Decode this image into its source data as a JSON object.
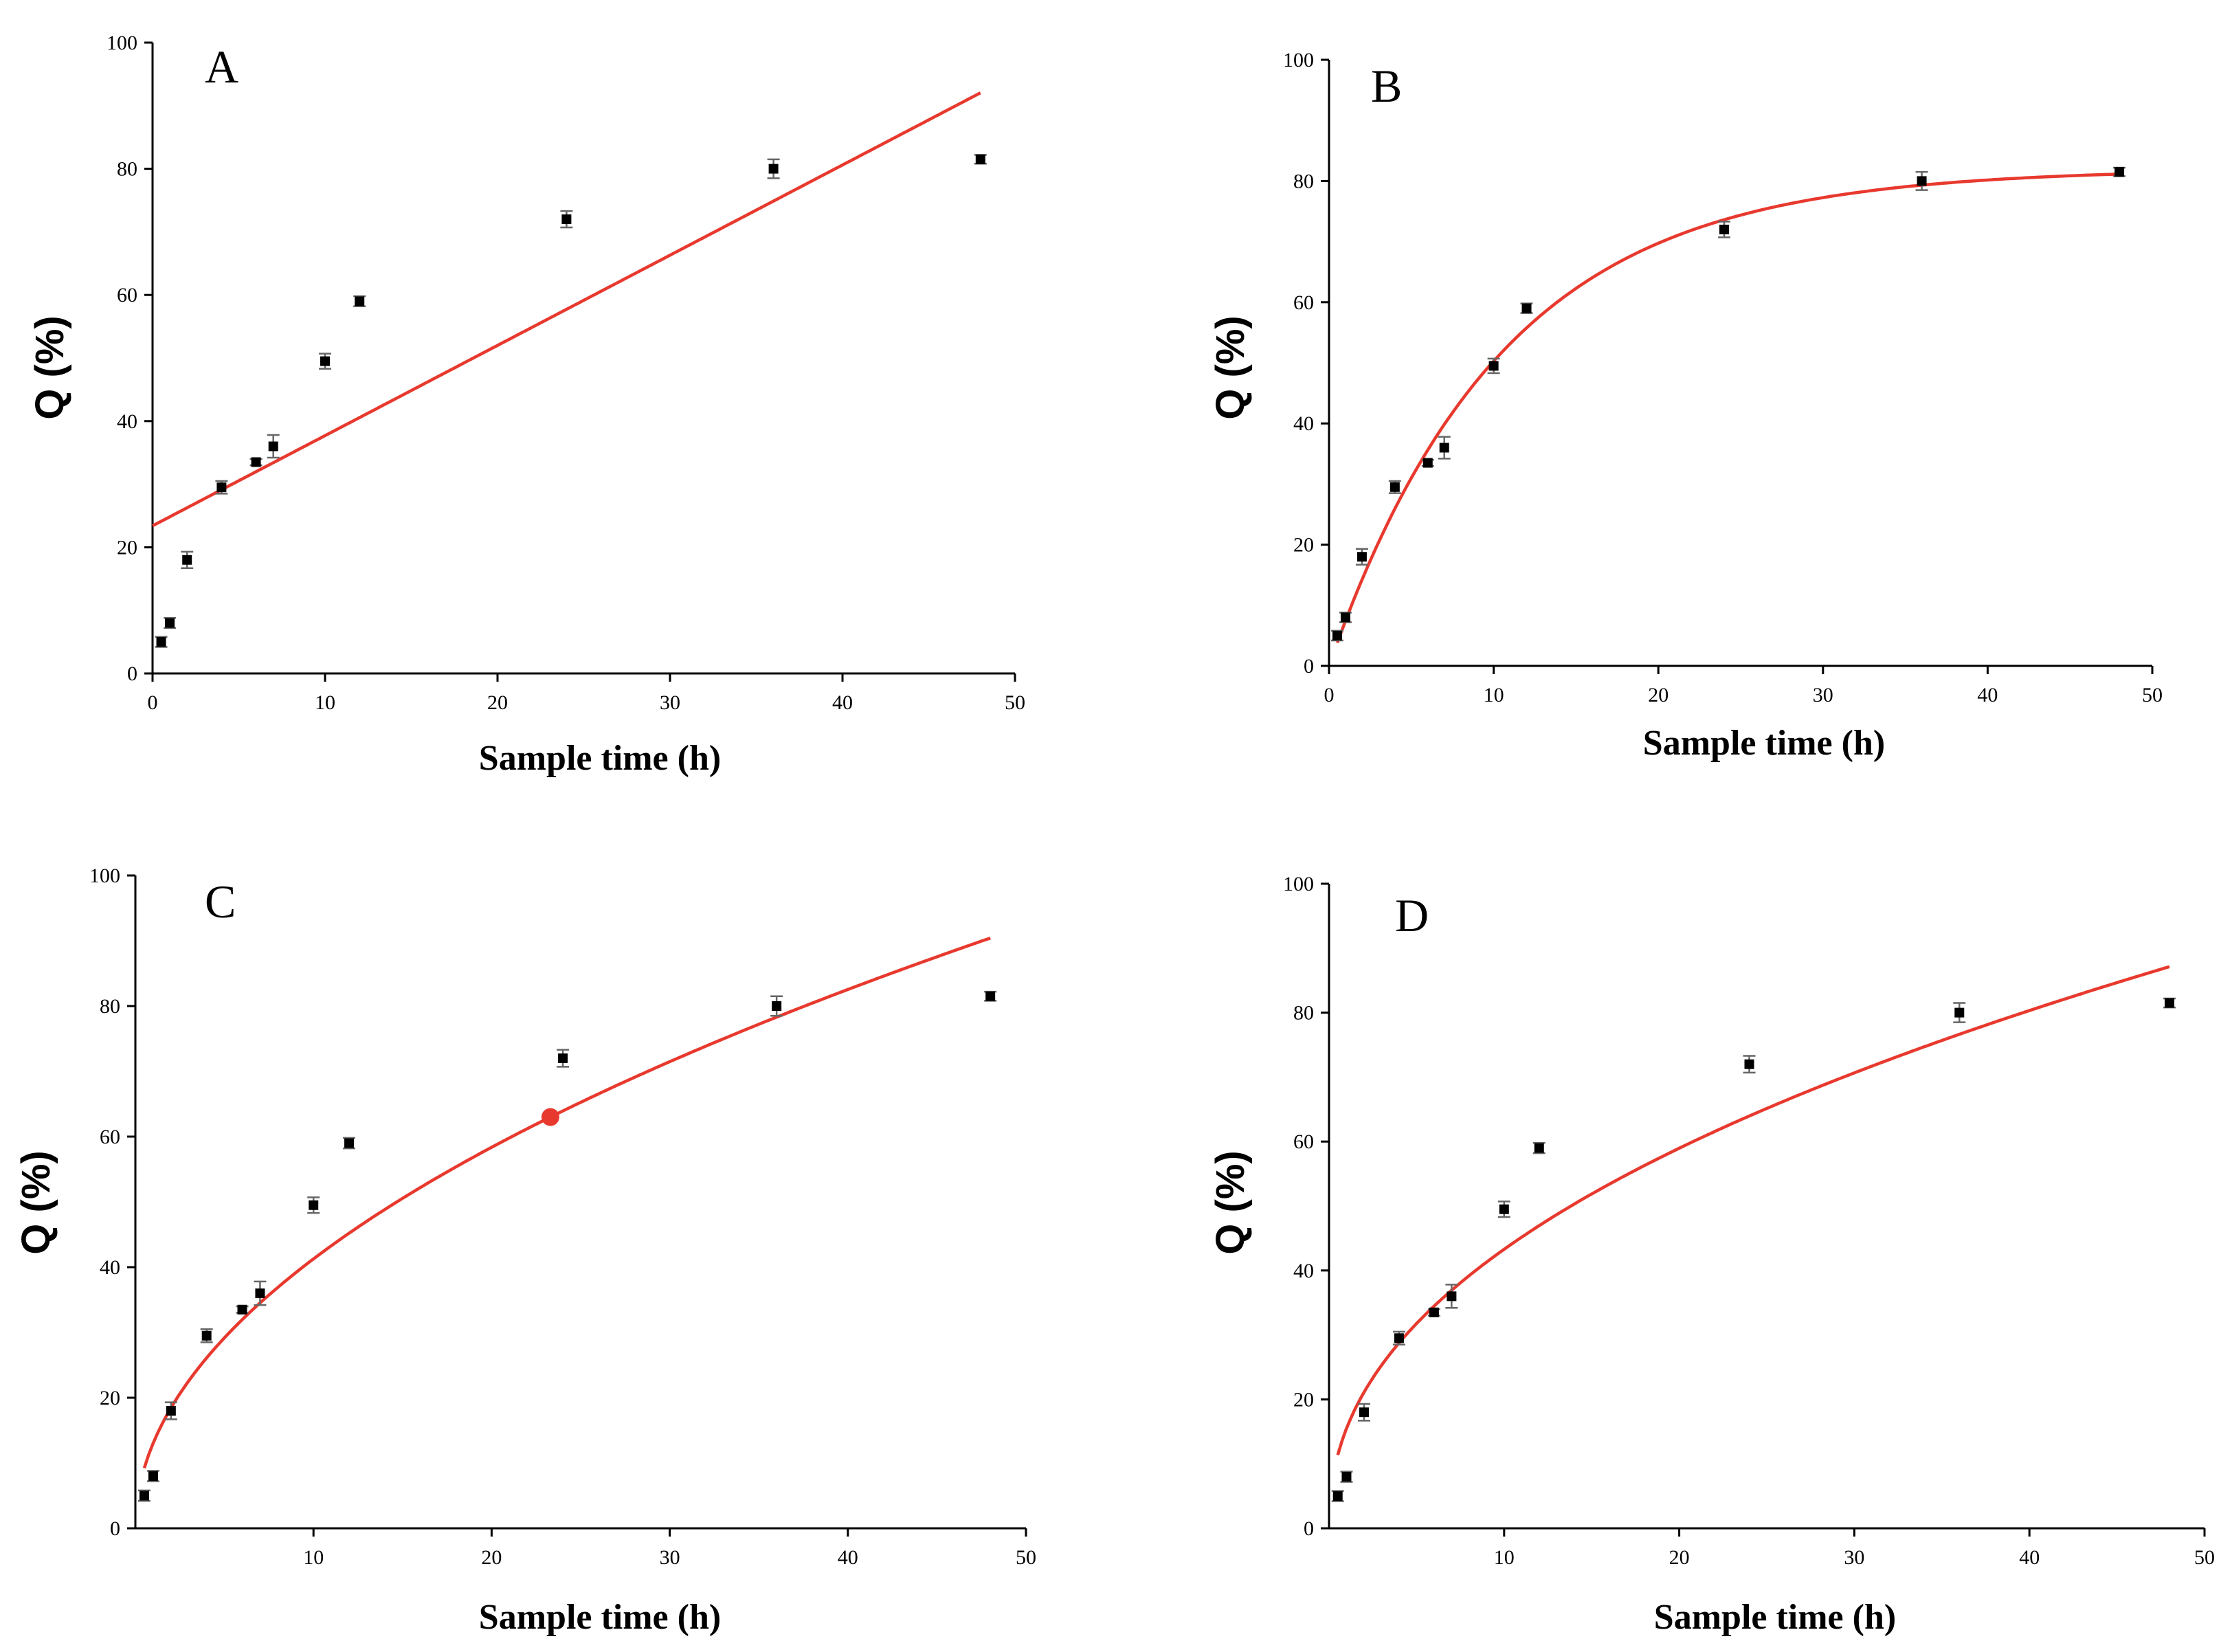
{
  "chart_data": [
    {
      "type": "scatter",
      "panel": "A",
      "fit": "linear",
      "xlabel": "Sample time (h)",
      "ylabel": "Q (%)",
      "xlim": [
        0,
        50
      ],
      "ylim": [
        0,
        100
      ],
      "xticks": [
        0,
        10,
        20,
        30,
        40,
        50
      ],
      "yticks": [
        0,
        20,
        40,
        60,
        80,
        100
      ],
      "x": [
        0.5,
        1,
        2,
        4,
        6,
        7,
        10,
        12,
        24,
        36,
        48
      ],
      "y": [
        5,
        8,
        18,
        29.5,
        33.5,
        36,
        49.5,
        59,
        72,
        80,
        81.5
      ],
      "error": [
        0.8,
        0.8,
        1.3,
        1.0,
        0.5,
        1.8,
        1.2,
        0.8,
        1.3,
        1.5,
        0.7
      ],
      "fit_line_color": "#e8392e",
      "fit_range": [
        0,
        48
      ]
    },
    {
      "type": "scatter",
      "panel": "B",
      "fit": "first-order",
      "xlabel": "Sample time (h)",
      "ylabel": "Q (%)",
      "xlim": [
        0,
        50
      ],
      "ylim": [
        0,
        100
      ],
      "xticks": [
        0,
        10,
        20,
        30,
        40,
        50
      ],
      "yticks": [
        0,
        20,
        40,
        60,
        80,
        100
      ],
      "x": [
        0.5,
        1,
        2,
        4,
        6,
        7,
        10,
        12,
        24,
        36,
        48
      ],
      "y": [
        5,
        8,
        18,
        29.5,
        33.5,
        36,
        49.5,
        59,
        72,
        80,
        81.5
      ],
      "error": [
        0.8,
        0.8,
        1.3,
        1.0,
        0.5,
        1.8,
        1.2,
        0.8,
        1.3,
        1.5,
        0.7
      ],
      "fit_line_color": "#e8392e",
      "fit_range": [
        0.5,
        48
      ]
    },
    {
      "type": "scatter",
      "panel": "C",
      "fit": "higuchi",
      "xlabel": "Sample time (h)",
      "ylabel": "Q (%)",
      "xlim": [
        0,
        50
      ],
      "ylim": [
        0,
        100
      ],
      "xticks": [
        10,
        20,
        30,
        40,
        50
      ],
      "yticks": [
        0,
        20,
        40,
        60,
        80,
        100
      ],
      "x": [
        0.5,
        1,
        2,
        4,
        6,
        7,
        10,
        12,
        24,
        36,
        48
      ],
      "y": [
        5,
        8,
        18,
        29.5,
        33.5,
        36,
        49.5,
        59,
        72,
        80,
        81.5
      ],
      "error": [
        0.8,
        0.8,
        1.3,
        1.0,
        0.5,
        1.8,
        1.2,
        0.8,
        1.3,
        1.5,
        0.7
      ],
      "fit_line_color": "#e8392e",
      "fit_range": [
        0.5,
        48
      ],
      "highlight_point": {
        "x": 23.3,
        "y": 63
      }
    },
    {
      "type": "scatter",
      "panel": "D",
      "fit": "korsmeyer-peppas",
      "xlabel": "Sample time (h)",
      "ylabel": "Q (%)",
      "xlim": [
        0,
        50
      ],
      "ylim": [
        0,
        100
      ],
      "xticks": [
        10,
        20,
        30,
        40,
        50
      ],
      "yticks": [
        0,
        20,
        40,
        60,
        80,
        100
      ],
      "x": [
        0.5,
        1,
        2,
        4,
        6,
        7,
        10,
        12,
        24,
        36,
        48
      ],
      "y": [
        5,
        8,
        18,
        29.5,
        33.5,
        36,
        49.5,
        59,
        72,
        80,
        81.5
      ],
      "error": [
        0.8,
        0.8,
        1.3,
        1.0,
        0.5,
        1.8,
        1.2,
        0.8,
        1.3,
        1.5,
        0.7
      ],
      "fit_line_color": "#e8392e",
      "fit_range": [
        0.5,
        48
      ]
    }
  ]
}
